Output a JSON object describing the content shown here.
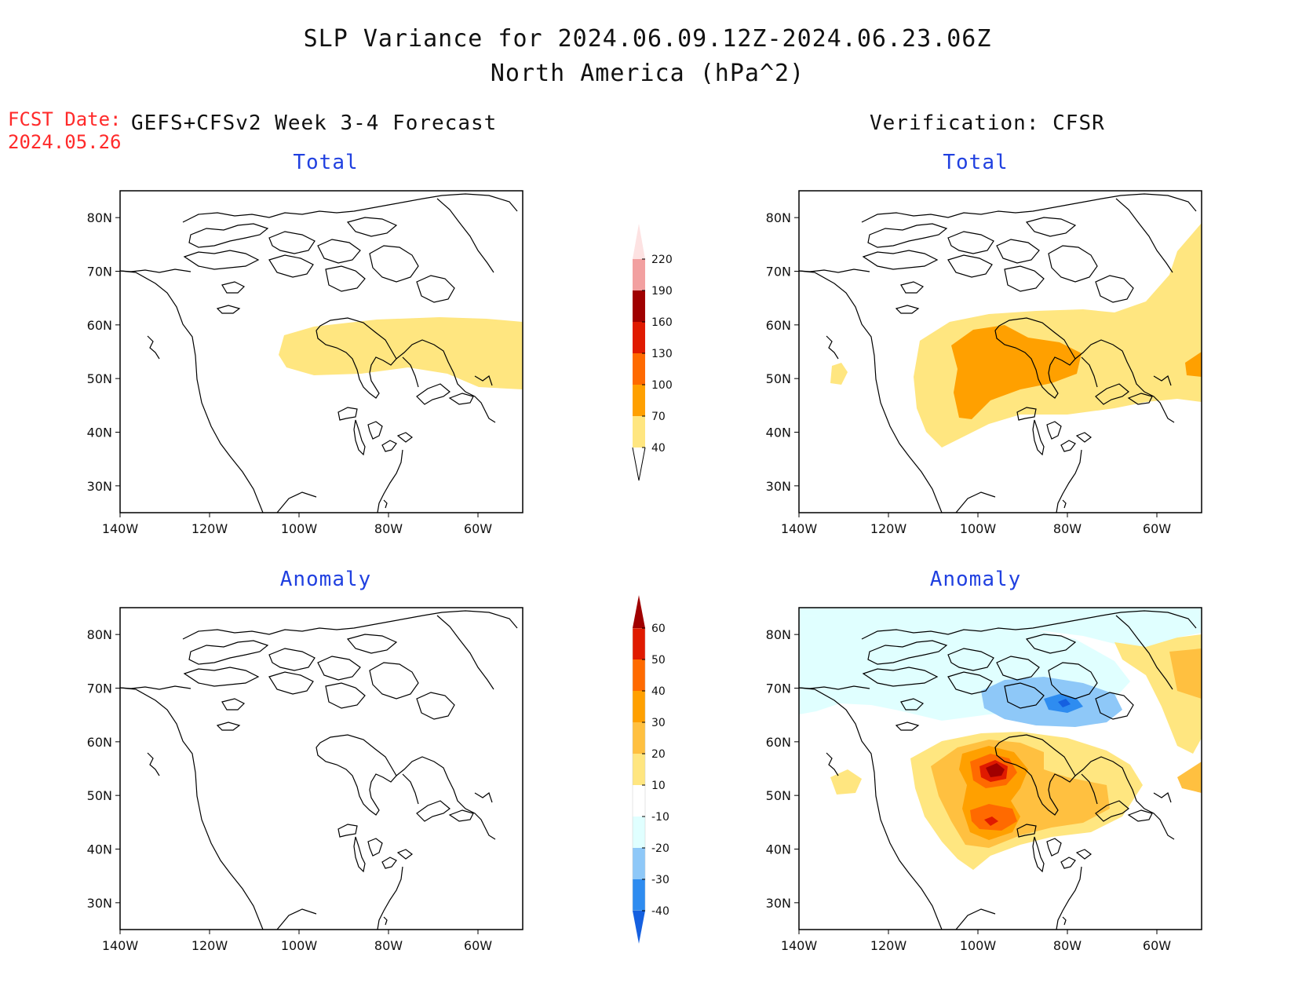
{
  "title": "SLP Variance for 2024.06.09.12Z-2024.06.23.06Z",
  "subtitle": "North America (hPa^2)",
  "fcst_date_label": "FCST Date:",
  "fcst_date": "2024.05.26",
  "left_header": "GEFS+CFSv2 Week 3-4 Forecast",
  "right_header": "Verification: CFSR",
  "panels": {
    "fc_total": {
      "title": "Total"
    },
    "ver_total": {
      "title": "Total"
    },
    "fc_anom": {
      "title": "Anomaly"
    },
    "ver_anom": {
      "title": "Anomaly"
    }
  },
  "lat_labels": [
    "80N",
    "70N",
    "60N",
    "50N",
    "40N",
    "30N"
  ],
  "lon_labels": [
    "140W",
    "120W",
    "100W",
    "80W",
    "60W"
  ],
  "total_colorbar": {
    "levels": [
      "40",
      "70",
      "100",
      "130",
      "160",
      "190",
      "220"
    ],
    "colors": [
      "#ffe680",
      "#ffa000",
      "#ff6a00",
      "#e01a00",
      "#a00000",
      "#f2a0a0",
      "#fde2e2"
    ]
  },
  "anom_colorbar": {
    "levels": [
      "-40",
      "-30",
      "-20",
      "-10",
      "10",
      "20",
      "30",
      "40",
      "50",
      "60"
    ],
    "colors": [
      "#1560e0",
      "#2e8cf0",
      "#8ec8f8",
      "#e0ffff",
      "#ffffff",
      "#ffe680",
      "#ffc040",
      "#ffa000",
      "#ff6a00",
      "#e01a00",
      "#a00000"
    ]
  },
  "chart_data": [
    {
      "type": "heatmap",
      "title": "Total",
      "source": "GEFS+CFSv2 Week 3-4 Forecast",
      "xlim": [
        "140W",
        "50W"
      ],
      "ylim": [
        "25N",
        "85N"
      ],
      "regions": [
        {
          "level": "40-70",
          "area": "band across central Canada 47N-61N, 102W-50W"
        }
      ]
    },
    {
      "type": "heatmap",
      "title": "Total",
      "source": "Verification: CFSR",
      "xlim": [
        "140W",
        "50W"
      ],
      "ylim": [
        "25N",
        "85N"
      ],
      "regions": [
        {
          "level": "40-70",
          "area": "large area 37N-62N, 110W-50W; northeast 60N-80N east of 60W; small spot near 51N 133W"
        },
        {
          "level": "70-100",
          "area": "central Canada 43N-60N, 104W-83W; small area near 52N 51W"
        }
      ]
    },
    {
      "type": "heatmap",
      "title": "Anomaly",
      "source": "GEFS+CFSv2 Week 3-4 Forecast",
      "xlim": [
        "140W",
        "50W"
      ],
      "ylim": [
        "25N",
        "85N"
      ],
      "regions": []
    },
    {
      "type": "heatmap",
      "title": "Anomaly",
      "source": "Verification: CFSR",
      "xlim": [
        "140W",
        "50W"
      ],
      "ylim": [
        "25N",
        "85N"
      ],
      "regions": [
        {
          "level": "-20 to -10",
          "area": "Arctic 63N-83N across domain"
        },
        {
          "level": "-30 to -20",
          "area": "around Foxe Basin 66N-72N, 95W-70W"
        },
        {
          "level": "-40 to -30",
          "area": "small spot near 68N 80W"
        },
        {
          "level": "10 to 20",
          "area": "central North America 36N-63N, 110W-68W; northeast coast"
        },
        {
          "level": "20 to 30",
          "area": "40N-62N, 105W-70W"
        },
        {
          "level": "30 to 40",
          "area": "two centers near 56N 97W and 45N 97W"
        },
        {
          "level": "40 to 50",
          "area": "cores near 56N 95W and 45N 97W"
        },
        {
          "level": "50 to 60",
          "area": "max near 56N 95W"
        }
      ]
    }
  ]
}
